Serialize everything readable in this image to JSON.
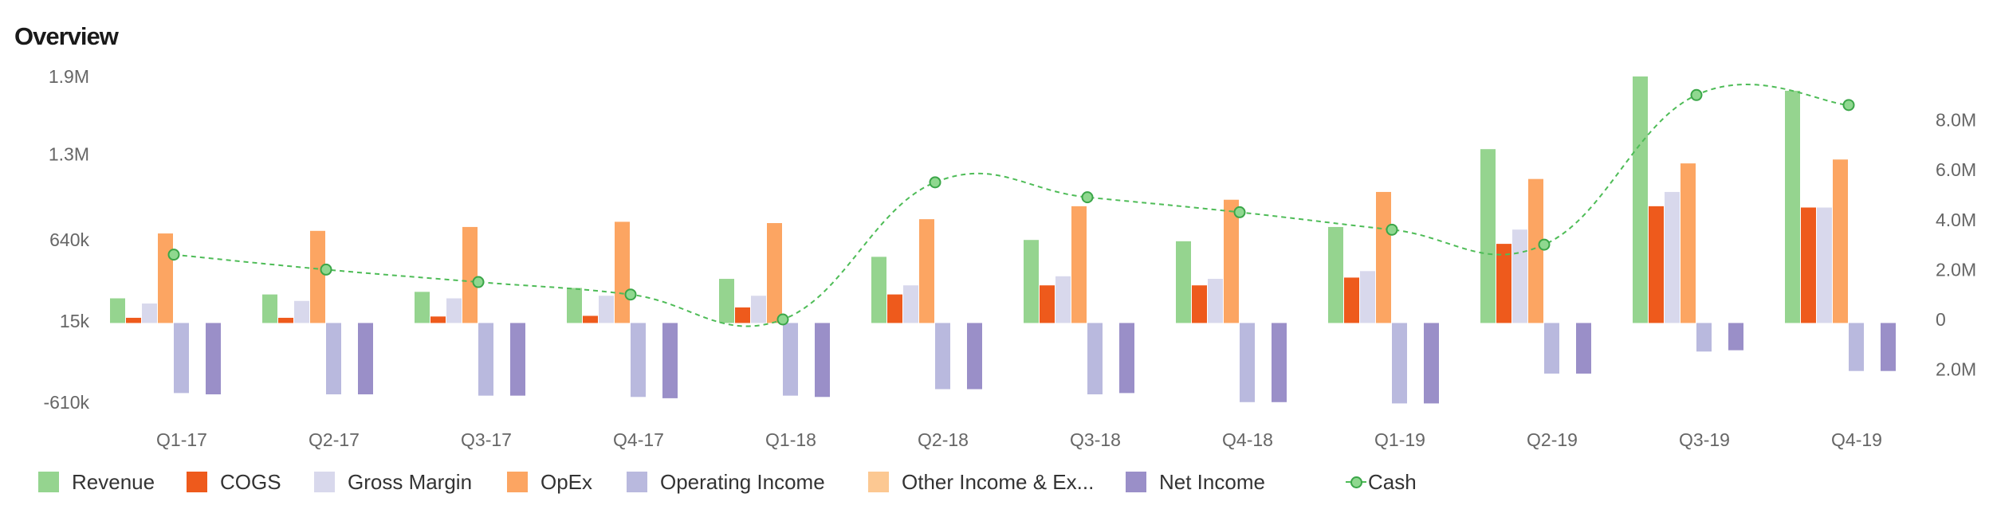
{
  "title": "Overview",
  "chart_data": {
    "type": "bar",
    "categories": [
      "Q1-17",
      "Q2-17",
      "Q3-17",
      "Q4-17",
      "Q1-18",
      "Q2-18",
      "Q3-18",
      "Q4-18",
      "Q1-19",
      "Q2-19",
      "Q3-19",
      "Q4-19"
    ],
    "y_left": {
      "ticks": [
        1900000,
        1300000,
        640000,
        15000,
        -610000
      ],
      "tick_labels": [
        "1.9M",
        "1.3M",
        "640k",
        "15k",
        "-610k"
      ]
    },
    "y_right": {
      "ticks": [
        8000000,
        6000000,
        4000000,
        2000000,
        0,
        -2000000
      ],
      "tick_labels": [
        "8.0M",
        "6.0M",
        "4.0M",
        "2.0M",
        "0",
        "2.0M"
      ]
    },
    "series": [
      {
        "name": "Revenue",
        "color": "#95d48f",
        "values": [
          190000,
          220000,
          240000,
          270000,
          340000,
          510000,
          640000,
          630000,
          740000,
          1340000,
          1900000,
          1790000
        ]
      },
      {
        "name": "COGS",
        "color": "#ee5a1c",
        "values": [
          40000,
          40000,
          50000,
          55000,
          120000,
          220000,
          290000,
          290000,
          350000,
          610000,
          900000,
          890000
        ]
      },
      {
        "name": "Gross Margin",
        "color": "#d8d8ec",
        "values": [
          150000,
          170000,
          190000,
          210000,
          210000,
          290000,
          360000,
          340000,
          400000,
          720000,
          1010000,
          890000
        ]
      },
      {
        "name": "OpEx",
        "color": "#fca562",
        "values": [
          690000,
          710000,
          740000,
          780000,
          770000,
          800000,
          900000,
          950000,
          1010000,
          1110000,
          1230000,
          1260000
        ]
      },
      {
        "name": "Operating Income",
        "color": "#b9b9de",
        "values": [
          -540000,
          -550000,
          -560000,
          -570000,
          -560000,
          -510000,
          -550000,
          -610000,
          -620000,
          -390000,
          -220000,
          -370000
        ]
      },
      {
        "name": "Other Income & Ex...",
        "color": "#fcc892",
        "values": [
          0,
          0,
          0,
          0,
          0,
          0,
          0,
          0,
          0,
          0,
          0,
          0
        ]
      },
      {
        "name": "Net Income",
        "color": "#9a8fc8",
        "values": [
          -550000,
          -550000,
          -560000,
          -580000,
          -570000,
          -510000,
          -540000,
          -610000,
          -620000,
          -390000,
          -210000,
          -370000
        ]
      }
    ],
    "line": {
      "name": "Cash",
      "color": "#4ebc57",
      "axis": "right",
      "values": [
        2600000,
        2000000,
        1500000,
        1000000,
        0,
        5500000,
        4900000,
        4300000,
        3600000,
        3000000,
        9000000,
        8600000
      ]
    },
    "legend_position": "bottom",
    "grid": false
  }
}
